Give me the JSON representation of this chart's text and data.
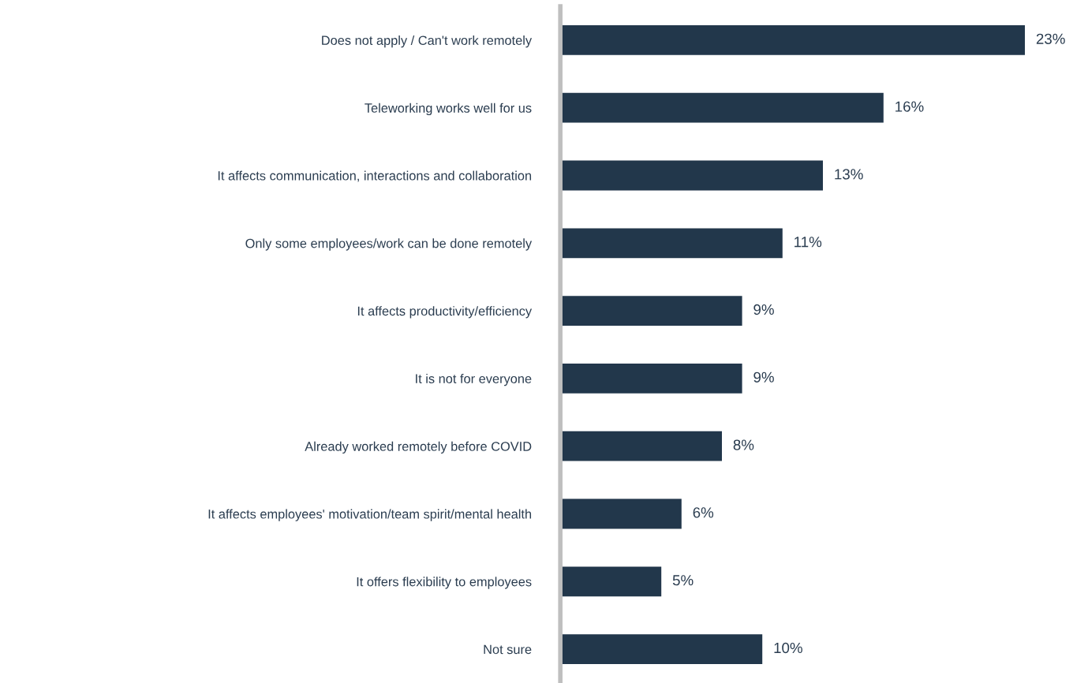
{
  "chart_data": {
    "type": "bar",
    "orientation": "horizontal",
    "categories": [
      "Does not apply / Can't work remotely",
      "Teleworking works well for us",
      "It affects communication, interactions and collaboration",
      "Only some employees/work can be done remotely",
      "It affects productivity/efficiency",
      "It is not for everyone",
      "Already worked remotely before COVID",
      "It affects employees' motivation/team spirit/mental health",
      "It offers flexibility to employees",
      "Not sure"
    ],
    "values": [
      23,
      16,
      13,
      11,
      9,
      9,
      8,
      6,
      5,
      10
    ],
    "value_labels": [
      "23%",
      "16%",
      "13%",
      "11%",
      "9%",
      "9%",
      "8%",
      "6%",
      "5%",
      "10%"
    ],
    "color": "#22374b"
  }
}
